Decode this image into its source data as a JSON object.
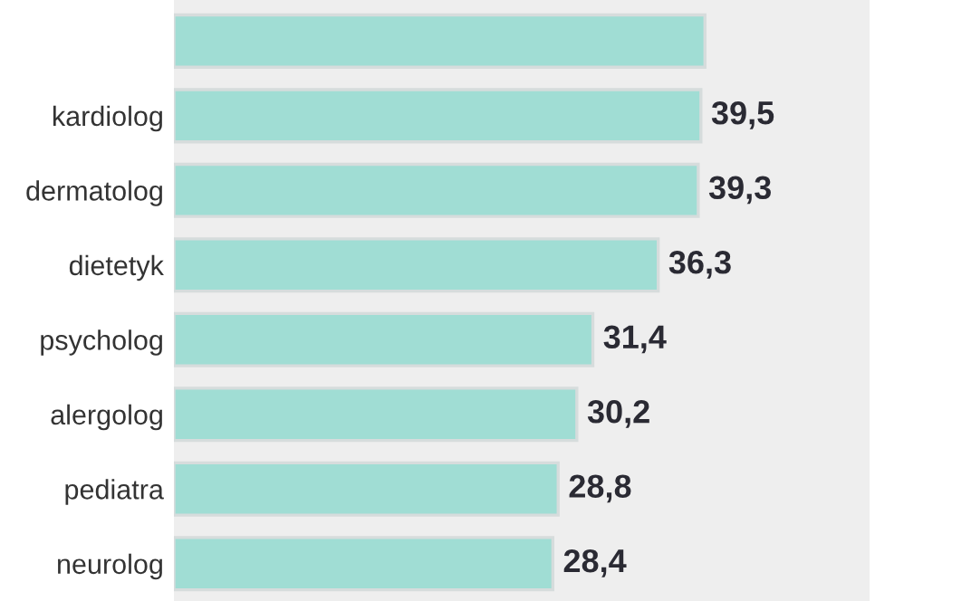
{
  "chart_data": {
    "type": "bar",
    "orientation": "horizontal",
    "categories": [
      null,
      "kardiolog",
      "dermatolog",
      "dietetyk",
      "psycholog",
      "alergolog",
      "pediatra",
      "neurolog"
    ],
    "values": [
      39.8,
      39.5,
      39.3,
      36.3,
      31.4,
      30.2,
      28.8,
      28.4
    ],
    "value_labels": [
      null,
      "39,5",
      "39,3",
      "36,3",
      "31,4",
      "30,2",
      "28,8",
      "28,4"
    ],
    "color": "#a0ddd4"
  }
}
